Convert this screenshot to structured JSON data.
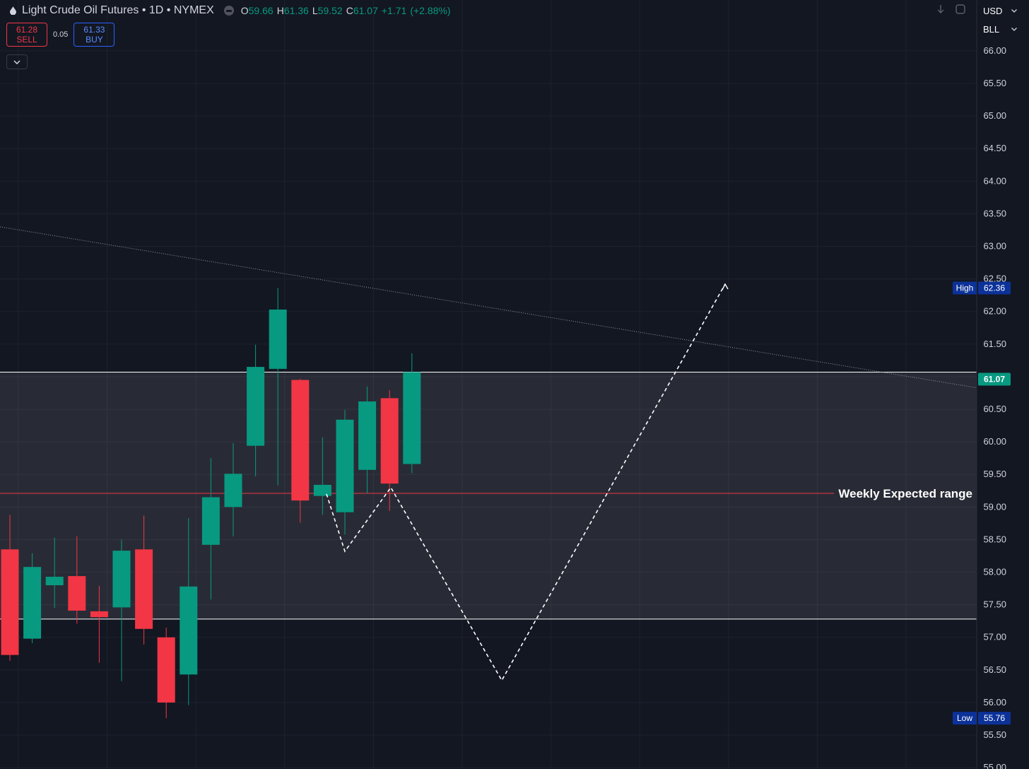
{
  "header": {
    "symbol": "Light Crude Oil Futures",
    "interval": "1D",
    "exchange": "NYMEX",
    "title_line": "Light Crude Oil Futures • 1D • NYMEX",
    "ohlc": {
      "o_label": "O",
      "o": "59.66",
      "h_label": "H",
      "h": "61.36",
      "l_label": "L",
      "l": "59.52",
      "c_label": "C",
      "c": "61.07",
      "change": "+1.71",
      "change_pct": "(+2.88%)"
    }
  },
  "trade_panel": {
    "sell_price": "61.28",
    "sell_label": "SELL",
    "spread": "0.05",
    "buy_price": "61.33",
    "buy_label": "BUY"
  },
  "selectors": {
    "currency": "USD",
    "unit": "BLL"
  },
  "colors": {
    "background": "#131722",
    "up": "#089981",
    "down": "#f23645",
    "grid": "#1e222d",
    "axis_text": "#d1d4dc",
    "badge": "#0c3299",
    "last_price": "#089981"
  },
  "chart_data": {
    "type": "candlestick",
    "title": "",
    "xlabel": "",
    "ylabel": "",
    "ylim": [
      54.98,
      66.78
    ],
    "y_ticks": [
      "66.00",
      "65.50",
      "65.00",
      "64.50",
      "64.00",
      "63.50",
      "63.00",
      "62.50",
      "62.00",
      "61.50",
      "61.00",
      "60.50",
      "60.00",
      "59.50",
      "59.00",
      "58.50",
      "58.00",
      "57.50",
      "57.00",
      "56.50",
      "56.00",
      "55.50",
      "55.00"
    ],
    "grid": true,
    "candles": [
      {
        "o": 58.35,
        "h": 58.88,
        "l": 56.64,
        "c": 56.73
      },
      {
        "o": 56.98,
        "h": 58.29,
        "l": 56.91,
        "c": 58.08
      },
      {
        "o": 57.8,
        "h": 58.53,
        "l": 57.45,
        "c": 57.93
      },
      {
        "o": 57.94,
        "h": 58.55,
        "l": 57.21,
        "c": 57.41
      },
      {
        "o": 57.4,
        "h": 57.79,
        "l": 56.61,
        "c": 57.31
      },
      {
        "o": 57.46,
        "h": 58.5,
        "l": 56.33,
        "c": 58.33
      },
      {
        "o": 58.35,
        "h": 58.87,
        "l": 56.89,
        "c": 57.13
      },
      {
        "o": 57.0,
        "h": 57.15,
        "l": 55.76,
        "c": 56.0
      },
      {
        "o": 56.43,
        "h": 58.83,
        "l": 55.96,
        "c": 57.78
      },
      {
        "o": 58.42,
        "h": 59.75,
        "l": 57.58,
        "c": 59.15
      },
      {
        "o": 59.0,
        "h": 59.98,
        "l": 58.55,
        "c": 59.51
      },
      {
        "o": 59.94,
        "h": 61.49,
        "l": 59.47,
        "c": 61.15
      },
      {
        "o": 61.12,
        "h": 62.36,
        "l": 59.33,
        "c": 62.03
      },
      {
        "o": 60.95,
        "h": 60.97,
        "l": 58.76,
        "c": 59.1
      },
      {
        "o": 59.17,
        "h": 60.07,
        "l": 58.88,
        "c": 59.34
      },
      {
        "o": 58.92,
        "h": 60.49,
        "l": 58.58,
        "c": 60.34
      },
      {
        "o": 59.57,
        "h": 60.85,
        "l": 59.21,
        "c": 60.62
      },
      {
        "o": 60.67,
        "h": 60.79,
        "l": 58.94,
        "c": 59.36
      },
      {
        "o": 59.66,
        "h": 61.36,
        "l": 59.52,
        "c": 61.07
      }
    ],
    "weekly_range": {
      "upper": 61.07,
      "lower": 57.28,
      "mid": 59.21,
      "label": "Weekly Expected range"
    },
    "trendline": {
      "from": 63.3,
      "to": 60.83
    },
    "projection": {
      "points": [
        59.2,
        58.32,
        59.3,
        56.34,
        62.42
      ]
    },
    "high": {
      "label": "High",
      "value": "62.36"
    },
    "low": {
      "label": "Low",
      "value": "55.76"
    },
    "last_price": "61.07"
  }
}
